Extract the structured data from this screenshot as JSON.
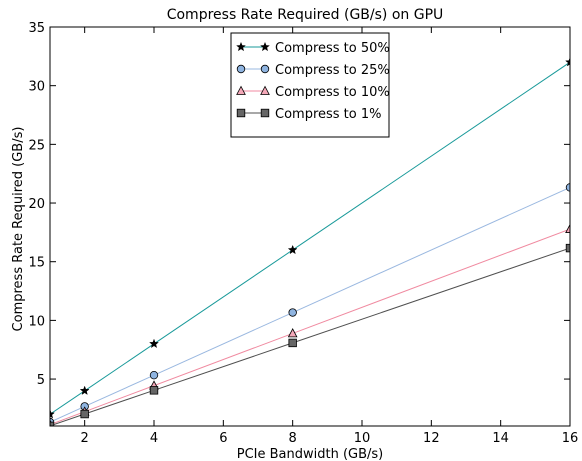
{
  "chart_data": {
    "type": "line",
    "title": "Compress Rate Required (GB/s) on GPU",
    "xlabel": "PCIe Bandwidth (GB/s)",
    "ylabel": "Compress Rate Required (GB/s)",
    "xlim": [
      1,
      16
    ],
    "ylim": [
      1,
      35
    ],
    "xticks": [
      2,
      4,
      6,
      8,
      10,
      12,
      14,
      16
    ],
    "yticks": [
      5,
      10,
      15,
      20,
      25,
      30,
      35
    ],
    "grid": false,
    "legend_position": "top-center",
    "x": [
      1,
      2,
      4,
      8,
      16
    ],
    "series": [
      {
        "name": "Compress to 50%",
        "values": [
          2.0,
          4.0,
          8.0,
          16.0,
          32.0
        ],
        "color": "#1a9a9a",
        "marker": "star",
        "fill": "#000000"
      },
      {
        "name": "Compress to 25%",
        "values": [
          1.33,
          2.67,
          5.33,
          10.67,
          21.33
        ],
        "color": "#9ab8e0",
        "marker": "circle",
        "fill": "#8fb4e0"
      },
      {
        "name": "Compress to 10%",
        "values": [
          1.11,
          2.22,
          4.44,
          8.89,
          17.78
        ],
        "color": "#f08aa0",
        "marker": "triangle",
        "fill": "#f4a8b8"
      },
      {
        "name": "Compress to 1%",
        "values": [
          1.01,
          2.02,
          4.04,
          8.08,
          16.16
        ],
        "color": "#505050",
        "marker": "square",
        "fill": "#666666"
      }
    ]
  }
}
